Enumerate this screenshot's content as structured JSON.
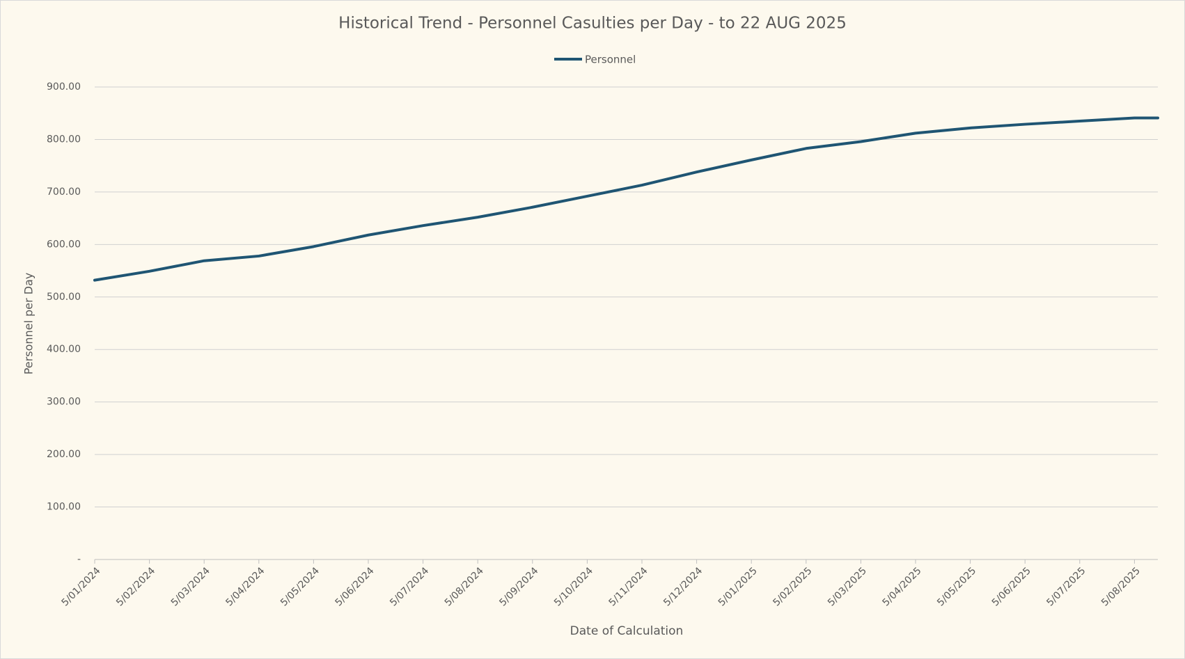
{
  "chart_data": {
    "type": "line",
    "title": "Historical Trend - Personnel Casulties per Day - to 22 AUG 2025",
    "x_label": "Date of Calculation",
    "y_label": "Personnel per Day",
    "categories": [
      "5/01/2024",
      "5/02/2024",
      "5/03/2024",
      "5/04/2024",
      "5/05/2024",
      "5/06/2024",
      "5/07/2024",
      "5/08/2024",
      "5/09/2024",
      "5/10/2024",
      "5/11/2024",
      "5/12/2024",
      "5/01/2025",
      "5/02/2025",
      "5/03/2025",
      "5/04/2025",
      "5/05/2025",
      "5/06/2025",
      "5/07/2025",
      "5/08/2025",
      null
    ],
    "series": [
      {
        "name": "Personnel",
        "color": "#1f5573",
        "values": [
          532,
          549,
          569,
          578,
          596,
          618,
          636,
          652,
          671,
          692,
          713,
          738,
          761,
          783,
          796,
          812,
          822,
          829,
          835,
          841,
          841
        ]
      }
    ],
    "ylim": [
      0,
      900
    ],
    "yticks": [
      {
        "value": 0,
        "label": "-"
      },
      {
        "value": 100,
        "label": "100.00"
      },
      {
        "value": 200,
        "label": "200.00"
      },
      {
        "value": 300,
        "label": "300.00"
      },
      {
        "value": 400,
        "label": "400.00"
      },
      {
        "value": 500,
        "label": "500.00"
      },
      {
        "value": 600,
        "label": "600.00"
      },
      {
        "value": 700,
        "label": "700.00"
      },
      {
        "value": 800,
        "label": "800.00"
      },
      {
        "value": 900,
        "label": "900.00"
      }
    ],
    "grid": true,
    "legend": "top"
  }
}
